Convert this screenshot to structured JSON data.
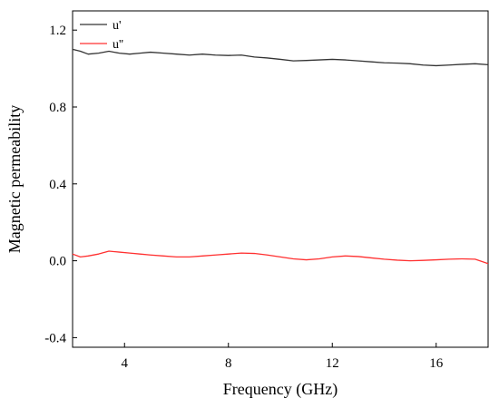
{
  "chart_data": {
    "type": "line",
    "title": "",
    "xlabel": "Frequency (GHz)",
    "ylabel": "Magnetic permeability",
    "xlim": [
      2,
      18
    ],
    "ylim": [
      -0.45,
      1.3
    ],
    "xticks": [
      4,
      8,
      12,
      16
    ],
    "yticks": [
      -0.4,
      0.0,
      0.4,
      0.8,
      1.2
    ],
    "xtick_labels": [
      "4",
      "8",
      "12",
      "16"
    ],
    "ytick_labels": [
      "-0.4",
      "0.0",
      "0.4",
      "0.8",
      "1.2"
    ],
    "grid": false,
    "legend_position": "top-left",
    "series": [
      {
        "name": "u'",
        "color": "#333333",
        "x": [
          2.0,
          2.3,
          2.6,
          3.0,
          3.4,
          3.8,
          4.2,
          4.6,
          5.0,
          5.5,
          6.0,
          6.5,
          7.0,
          7.5,
          8.0,
          8.5,
          9.0,
          9.5,
          10.0,
          10.5,
          11.0,
          11.5,
          12.0,
          12.5,
          13.0,
          13.5,
          14.0,
          14.5,
          15.0,
          15.5,
          16.0,
          16.5,
          17.0,
          17.5,
          18.0
        ],
        "y": [
          1.1,
          1.09,
          1.075,
          1.08,
          1.09,
          1.08,
          1.075,
          1.08,
          1.085,
          1.08,
          1.075,
          1.07,
          1.075,
          1.07,
          1.068,
          1.07,
          1.06,
          1.055,
          1.048,
          1.04,
          1.042,
          1.045,
          1.048,
          1.045,
          1.04,
          1.035,
          1.03,
          1.028,
          1.025,
          1.018,
          1.015,
          1.018,
          1.022,
          1.025,
          1.02
        ]
      },
      {
        "name": "u''",
        "color": "#ff3030",
        "x": [
          2.0,
          2.3,
          2.6,
          3.0,
          3.4,
          3.8,
          4.2,
          4.6,
          5.0,
          5.5,
          6.0,
          6.5,
          7.0,
          7.5,
          8.0,
          8.5,
          9.0,
          9.5,
          10.0,
          10.5,
          11.0,
          11.5,
          12.0,
          12.5,
          13.0,
          13.5,
          14.0,
          14.5,
          15.0,
          15.5,
          16.0,
          16.5,
          17.0,
          17.5,
          18.0
        ],
        "y": [
          0.035,
          0.02,
          0.025,
          0.035,
          0.05,
          0.045,
          0.04,
          0.035,
          0.03,
          0.025,
          0.02,
          0.02,
          0.025,
          0.03,
          0.035,
          0.04,
          0.038,
          0.03,
          0.02,
          0.01,
          0.005,
          0.01,
          0.02,
          0.025,
          0.022,
          0.015,
          0.008,
          0.003,
          0.0,
          0.002,
          0.005,
          0.008,
          0.01,
          0.008,
          -0.015
        ]
      }
    ]
  }
}
